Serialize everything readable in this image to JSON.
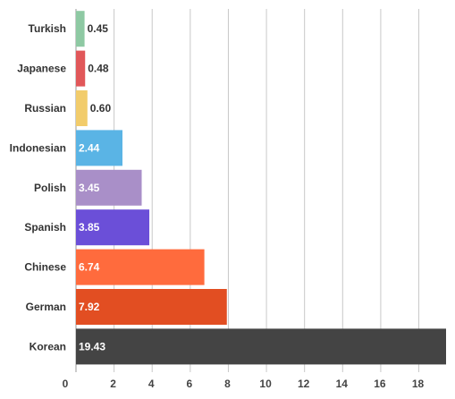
{
  "chart_data": {
    "type": "bar",
    "orientation": "horizontal",
    "categories": [
      "Turkish",
      "Japanese",
      "Russian",
      "Indonesian",
      "Polish",
      "Spanish",
      "Chinese",
      "German",
      "Korean"
    ],
    "values": [
      0.45,
      0.48,
      0.6,
      2.44,
      3.45,
      3.85,
      6.74,
      7.92,
      19.43
    ],
    "value_labels": [
      "0.45",
      "0.48",
      "0.60",
      "2.44",
      "3.45",
      "3.85",
      "6.74",
      "7.92",
      "19.43"
    ],
    "colors": [
      "#8ec9a3",
      "#e15759",
      "#f2cc6b",
      "#5ab4e5",
      "#a98fc8",
      "#6b4fd8",
      "#ff6b3d",
      "#e24e22",
      "#444444"
    ],
    "x_ticks": [
      "0",
      "2",
      "4",
      "6",
      "8",
      "10",
      "12",
      "14",
      "16",
      "18"
    ],
    "xlim": [
      0,
      19.43
    ],
    "grid": true,
    "legend": "none"
  }
}
